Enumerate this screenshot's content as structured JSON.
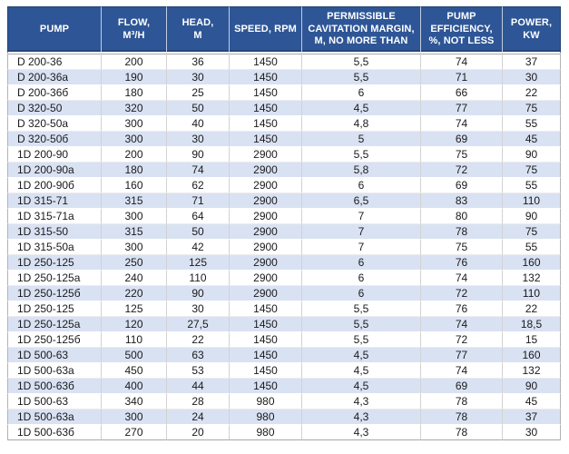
{
  "chart_data": {
    "type": "table",
    "columns": [
      {
        "key": "pump",
        "label": "PUMP"
      },
      {
        "key": "flow",
        "label": "FLOW,\nM³/H"
      },
      {
        "key": "head",
        "label": "HEAD,\nM"
      },
      {
        "key": "speed",
        "label": "SPEED, RPM"
      },
      {
        "key": "cavitation_margin",
        "label": "PERMISSIBLE\nCAVITATION MARGIN,\nM, NO MORE THAN"
      },
      {
        "key": "efficiency",
        "label": "PUMP\nEFFICIENCY,\n%, NOT LESS"
      },
      {
        "key": "power",
        "label": "POWER,\nKW"
      }
    ],
    "rows": [
      [
        "D 200-36",
        "200",
        "36",
        "1450",
        "5,5",
        "74",
        "37"
      ],
      [
        "D 200-36a",
        "190",
        "30",
        "1450",
        "5,5",
        "71",
        "30"
      ],
      [
        "D 200-36б",
        "180",
        "25",
        "1450",
        "6",
        "66",
        "22"
      ],
      [
        "D 320-50",
        "320",
        "50",
        "1450",
        "4,5",
        "77",
        "75"
      ],
      [
        "D 320-50a",
        "300",
        "40",
        "1450",
        "4,8",
        "74",
        "55"
      ],
      [
        "D 320-50б",
        "300",
        "30",
        "1450",
        "5",
        "69",
        "45"
      ],
      [
        "1D 200-90",
        "200",
        "90",
        "2900",
        "5,5",
        "75",
        "90"
      ],
      [
        "1D 200-90a",
        "180",
        "74",
        "2900",
        "5,8",
        "72",
        "75"
      ],
      [
        "1D 200-90б",
        "160",
        "62",
        "2900",
        "6",
        "69",
        "55"
      ],
      [
        "1D 315-71",
        "315",
        "71",
        "2900",
        "6,5",
        "83",
        "110"
      ],
      [
        "1D 315-71a",
        "300",
        "64",
        "2900",
        "7",
        "80",
        "90"
      ],
      [
        "1D 315-50",
        "315",
        "50",
        "2900",
        "7",
        "78",
        "75"
      ],
      [
        "1D 315-50a",
        "300",
        "42",
        "2900",
        "7",
        "75",
        "55"
      ],
      [
        "1D 250-125",
        "250",
        "125",
        "2900",
        "6",
        "76",
        "160"
      ],
      [
        "1D 250-125a",
        "240",
        "110",
        "2900",
        "6",
        "74",
        "132"
      ],
      [
        "1D 250-125б",
        "220",
        "90",
        "2900",
        "6",
        "72",
        "110"
      ],
      [
        "1D 250-125",
        "125",
        "30",
        "1450",
        "5,5",
        "76",
        "22"
      ],
      [
        "1D 250-125a",
        "120",
        "27,5",
        "1450",
        "5,5",
        "74",
        "18,5"
      ],
      [
        "1D 250-125б",
        "110",
        "22",
        "1450",
        "5,5",
        "72",
        "15"
      ],
      [
        "1D 500-63",
        "500",
        "63",
        "1450",
        "4,5",
        "77",
        "160"
      ],
      [
        "1D 500-63a",
        "450",
        "53",
        "1450",
        "4,5",
        "74",
        "132"
      ],
      [
        "1D 500-63б",
        "400",
        "44",
        "1450",
        "4,5",
        "69",
        "90"
      ],
      [
        "1D 500-63",
        "340",
        "28",
        "980",
        "4,3",
        "78",
        "45"
      ],
      [
        "1D 500-63a",
        "300",
        "24",
        "980",
        "4,3",
        "78",
        "37"
      ],
      [
        "1D 500-63б",
        "270",
        "20",
        "980",
        "4,3",
        "78",
        "30"
      ]
    ],
    "layout": {
      "legend": "none",
      "grid": "on",
      "striped_rows": true
    },
    "colors": {
      "header_bg": "#2E5696",
      "header_text": "#FFFFFF",
      "stripe": "#D9E2F3",
      "body_text": "#1A1A1A"
    }
  }
}
